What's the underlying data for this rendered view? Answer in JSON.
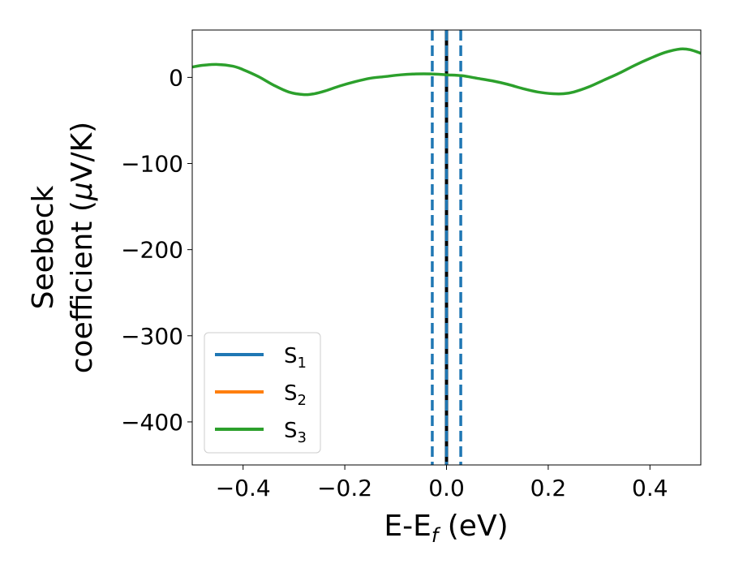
{
  "chart_data": {
    "type": "line",
    "title": "",
    "xlabel": {
      "main": "E-E",
      "sub": "f",
      "suffix": " (eV)"
    },
    "ylabel": {
      "line1": "Seebeck",
      "line2_prefix": "coefficient  (",
      "mu": "μ",
      "line2_suffix": "V/K)"
    },
    "xlim": [
      -0.5,
      0.5
    ],
    "ylim": [
      -450,
      55
    ],
    "xticks": [
      -0.4,
      -0.2,
      0.0,
      0.2,
      0.4
    ],
    "xtick_labels": [
      "−0.4",
      "−0.2",
      "0.0",
      "0.2",
      "0.4"
    ],
    "yticks": [
      0,
      -100,
      -200,
      -300,
      -400
    ],
    "ytick_labels": [
      "0",
      "−100",
      "−200",
      "−300",
      "−400"
    ],
    "grid": false,
    "legend_position": "lower-left",
    "series": [
      {
        "name": "S",
        "sub": "1",
        "color": "#1f77b4"
      },
      {
        "name": "S",
        "sub": "2",
        "color": "#ff7f0e"
      },
      {
        "name": "S",
        "sub": "3",
        "color": "#2ca02c",
        "x": [
          -0.5,
          -0.48,
          -0.45,
          -0.42,
          -0.4,
          -0.37,
          -0.34,
          -0.31,
          -0.28,
          -0.26,
          -0.24,
          -0.21,
          -0.18,
          -0.15,
          -0.12,
          -0.09,
          -0.06,
          -0.03,
          0.0,
          0.03,
          0.06,
          0.09,
          0.12,
          0.15,
          0.18,
          0.21,
          0.23,
          0.25,
          0.28,
          0.31,
          0.34,
          0.37,
          0.4,
          0.43,
          0.46,
          0.48,
          0.5
        ],
        "y": [
          12,
          14,
          15,
          13,
          9,
          1,
          -9,
          -17,
          -20,
          -19,
          -16,
          -10,
          -5,
          -1,
          1,
          3,
          4,
          4,
          3,
          2,
          -1,
          -4,
          -8,
          -13,
          -17,
          -19,
          -19,
          -17,
          -11,
          -3,
          5,
          14,
          22,
          29,
          33,
          32,
          28
        ]
      }
    ],
    "vertical_lines": [
      {
        "x": 0.0,
        "color": "#000000",
        "style": "solid"
      },
      {
        "x": 0.0,
        "color": "#1f77b4",
        "style": "dashed"
      },
      {
        "x": -0.028,
        "color": "#1f77b4",
        "style": "dashed"
      },
      {
        "x": 0.028,
        "color": "#1f77b4",
        "style": "dashed"
      }
    ]
  }
}
